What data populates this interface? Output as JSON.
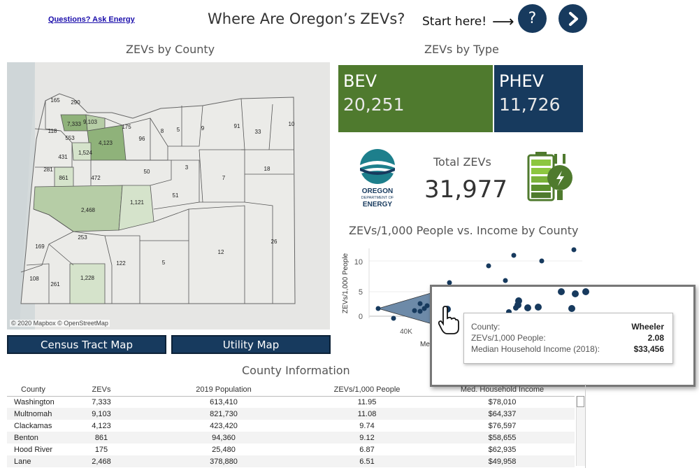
{
  "header": {
    "ask_link": "Questions? Ask Energy",
    "title": "Where Are Oregon’s ZEVs?",
    "start_label": "Start here!",
    "help_symbol": "?"
  },
  "map": {
    "title": "ZEVs by County",
    "credit": "© 2020 Mapbox © OpenStreetMap",
    "county_labels": [
      "165",
      "290",
      "7,333",
      "9,103",
      "175",
      "118",
      "553",
      "4,123",
      "96",
      "8",
      "5",
      "9",
      "91",
      "33",
      "10",
      "1,524",
      "431",
      "281",
      "861",
      "472",
      "50",
      "3",
      "18",
      "7",
      "51",
      "1,121",
      "2,468",
      "253",
      "169",
      "12",
      "26",
      "122",
      "5",
      "108",
      "261",
      "1,228"
    ],
    "census_button": "Census Tract Map",
    "utility_button": "Utility Map"
  },
  "types": {
    "title": "ZEVs by Type",
    "bev_label": "BEV",
    "bev_value": "20,251",
    "phev_label": "PHEV",
    "phev_value": "11,726",
    "total_label": "Total ZEVs",
    "total_value": "31,977"
  },
  "logo": {
    "line1": "OREGON",
    "line2": "DEPARTMENT OF",
    "line3": "ENERGY"
  },
  "scatter": {
    "title": "ZEVs/1,000 People vs. Income by County",
    "ylabel": "ZEVs/1,000 People",
    "xlabel_fragment": "Me",
    "ytick_labels": [
      "10",
      "5",
      "0"
    ],
    "xtick_labels": [
      "40K"
    ]
  },
  "tooltip": {
    "county_label": "County:",
    "county_value": "Wheeler",
    "rate_label": "ZEVs/1,000 People:",
    "rate_value": "2.08",
    "income_label": "Median Household Income (2018):",
    "income_value": "$33,456"
  },
  "table": {
    "title": "County Information",
    "columns": [
      "County",
      "ZEVs",
      "2019 Population",
      "ZEVs/1,000 People",
      "Med. Household Income"
    ],
    "rows": [
      [
        "Washington",
        "7,333",
        "613,410",
        "11.95",
        "$78,010"
      ],
      [
        "Multnomah",
        "9,103",
        "821,730",
        "11.08",
        "$64,337"
      ],
      [
        "Clackamas",
        "4,123",
        "423,420",
        "9.74",
        "$76,597"
      ],
      [
        "Benton",
        "861",
        "94,360",
        "9.12",
        "$58,655"
      ],
      [
        "Hood River",
        "175",
        "25,480",
        "6.87",
        "$62,935"
      ],
      [
        "Lane",
        "2,468",
        "378,880",
        "6.51",
        "$49,958"
      ]
    ]
  },
  "colors": {
    "navy": "#173a5e",
    "green": "#4f7a2e",
    "map_bg": "#e6e6e4",
    "county_high": "#8fb27a",
    "county_mid": "#b6cda6",
    "county_low": "#d5e3cb"
  }
}
